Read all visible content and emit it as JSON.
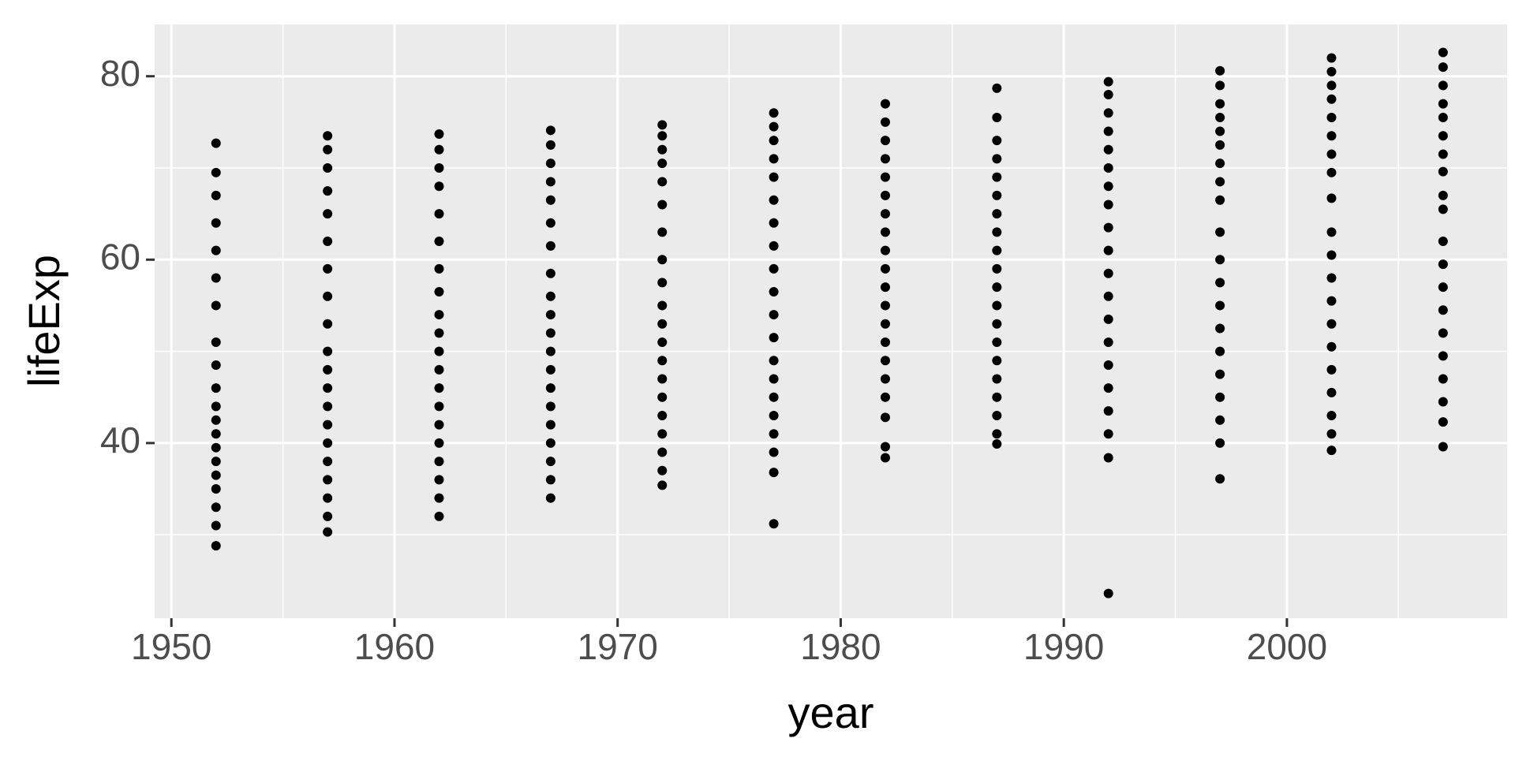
{
  "chart_data": {
    "type": "scatter",
    "x_label": "year",
    "y_label": "lifeExp",
    "x": [
      1952,
      1952,
      1952,
      1952,
      1952,
      1952,
      1952,
      1952,
      1952,
      1952,
      1952,
      1952,
      1952,
      1952,
      1952,
      1952,
      1952,
      1952,
      1952,
      1952,
      1957,
      1957,
      1957,
      1957,
      1957,
      1957,
      1957,
      1957,
      1957,
      1957,
      1957,
      1957,
      1957,
      1957,
      1957,
      1957,
      1957,
      1957,
      1957,
      1957,
      1962,
      1962,
      1962,
      1962,
      1962,
      1962,
      1962,
      1962,
      1962,
      1962,
      1962,
      1962,
      1962,
      1962,
      1962,
      1962,
      1962,
      1962,
      1962,
      1962,
      1967,
      1967,
      1967,
      1967,
      1967,
      1967,
      1967,
      1967,
      1967,
      1967,
      1967,
      1967,
      1967,
      1967,
      1967,
      1967,
      1967,
      1967,
      1967,
      1967,
      1972,
      1972,
      1972,
      1972,
      1972,
      1972,
      1972,
      1972,
      1972,
      1972,
      1972,
      1972,
      1972,
      1972,
      1972,
      1972,
      1972,
      1972,
      1972,
      1972,
      1977,
      1977,
      1977,
      1977,
      1977,
      1977,
      1977,
      1977,
      1977,
      1977,
      1977,
      1977,
      1977,
      1977,
      1977,
      1977,
      1977,
      1977,
      1977,
      1977,
      1982,
      1982,
      1982,
      1982,
      1982,
      1982,
      1982,
      1982,
      1982,
      1982,
      1982,
      1982,
      1982,
      1982,
      1982,
      1982,
      1982,
      1982,
      1982,
      1982,
      1987,
      1987,
      1987,
      1987,
      1987,
      1987,
      1987,
      1987,
      1987,
      1987,
      1987,
      1987,
      1987,
      1987,
      1987,
      1987,
      1987,
      1987,
      1987,
      1987,
      1992,
      1992,
      1992,
      1992,
      1992,
      1992,
      1992,
      1992,
      1992,
      1992,
      1992,
      1992,
      1992,
      1992,
      1992,
      1992,
      1992,
      1992,
      1992,
      1992,
      1997,
      1997,
      1997,
      1997,
      1997,
      1997,
      1997,
      1997,
      1997,
      1997,
      1997,
      1997,
      1997,
      1997,
      1997,
      1997,
      1997,
      1997,
      1997,
      1997,
      2002,
      2002,
      2002,
      2002,
      2002,
      2002,
      2002,
      2002,
      2002,
      2002,
      2002,
      2002,
      2002,
      2002,
      2002,
      2002,
      2002,
      2002,
      2002,
      2002,
      2007,
      2007,
      2007,
      2007,
      2007,
      2007,
      2007,
      2007,
      2007,
      2007,
      2007,
      2007,
      2007,
      2007,
      2007,
      2007,
      2007,
      2007,
      2007,
      2007
    ],
    "values": [
      28.8,
      31,
      33,
      35,
      36.5,
      38,
      39.5,
      41,
      42.5,
      44,
      46,
      48.5,
      51,
      55,
      58,
      61,
      64,
      67,
      69.5,
      72.7,
      30.3,
      32,
      34,
      36,
      38,
      40,
      42,
      44,
      46,
      48,
      50,
      53,
      56,
      59,
      62,
      65,
      67.5,
      70,
      72,
      73.5,
      32,
      34,
      36,
      38,
      40,
      42,
      44,
      46,
      48,
      50,
      52,
      54,
      56.5,
      59,
      62,
      65,
      68,
      70,
      72,
      73.7,
      34,
      36,
      38,
      40,
      42,
      44,
      46,
      48,
      50,
      52,
      54,
      56,
      58.5,
      61.5,
      64,
      66.5,
      68.5,
      70.5,
      72.5,
      74.1,
      35.4,
      37,
      39,
      41,
      43,
      45,
      47,
      49,
      51,
      53,
      55,
      57.5,
      60,
      63,
      66,
      68.5,
      70.5,
      72,
      73.5,
      74.7,
      31.2,
      36.8,
      39,
      41,
      43,
      45,
      47,
      49,
      51.5,
      54,
      56.5,
      59,
      61.5,
      64,
      66.5,
      69,
      71,
      73,
      74.5,
      76,
      38.4,
      39.6,
      42.8,
      45,
      47,
      49,
      51,
      53,
      55,
      57,
      59,
      61,
      63,
      65,
      67,
      69,
      71,
      73,
      75,
      77,
      39.9,
      41,
      43,
      45,
      47,
      49,
      51,
      53,
      55,
      57,
      59,
      61,
      63,
      65,
      67,
      69,
      71,
      73,
      75.5,
      78.7,
      23.6,
      38.4,
      41,
      43.5,
      46,
      48.5,
      51,
      53.5,
      56,
      58.5,
      61,
      63.5,
      66,
      68,
      70,
      72,
      74,
      76,
      78,
      79.4,
      36.1,
      40,
      42.5,
      45,
      47.5,
      50,
      52.5,
      55,
      57.5,
      60,
      63,
      66.5,
      68.5,
      70.5,
      72.5,
      74,
      75.5,
      77,
      79,
      80.6,
      39.2,
      41,
      43,
      45.5,
      48,
      50.5,
      53,
      55.5,
      58,
      60.5,
      63,
      66.7,
      69.5,
      71.5,
      73.5,
      75.5,
      77.5,
      79,
      80.5,
      82,
      39.6,
      42.3,
      44.5,
      47,
      49.5,
      52,
      54.5,
      57,
      59.5,
      62,
      65.5,
      67,
      69.6,
      71.5,
      73.5,
      75.5,
      77,
      79,
      81,
      82.6
    ],
    "color": "#000000",
    "xlim": [
      1949.25,
      2009.87
    ],
    "ylim": [
      20.9,
      85.65
    ],
    "xticks": [
      1950,
      1960,
      1970,
      1980,
      1990,
      2000
    ],
    "yticks": [
      40,
      60,
      80
    ],
    "x_minor_grid": [
      1955,
      1965,
      1975,
      1985,
      1995,
      2005
    ],
    "y_minor_grid": [
      30,
      50,
      70
    ],
    "grid": true
  }
}
